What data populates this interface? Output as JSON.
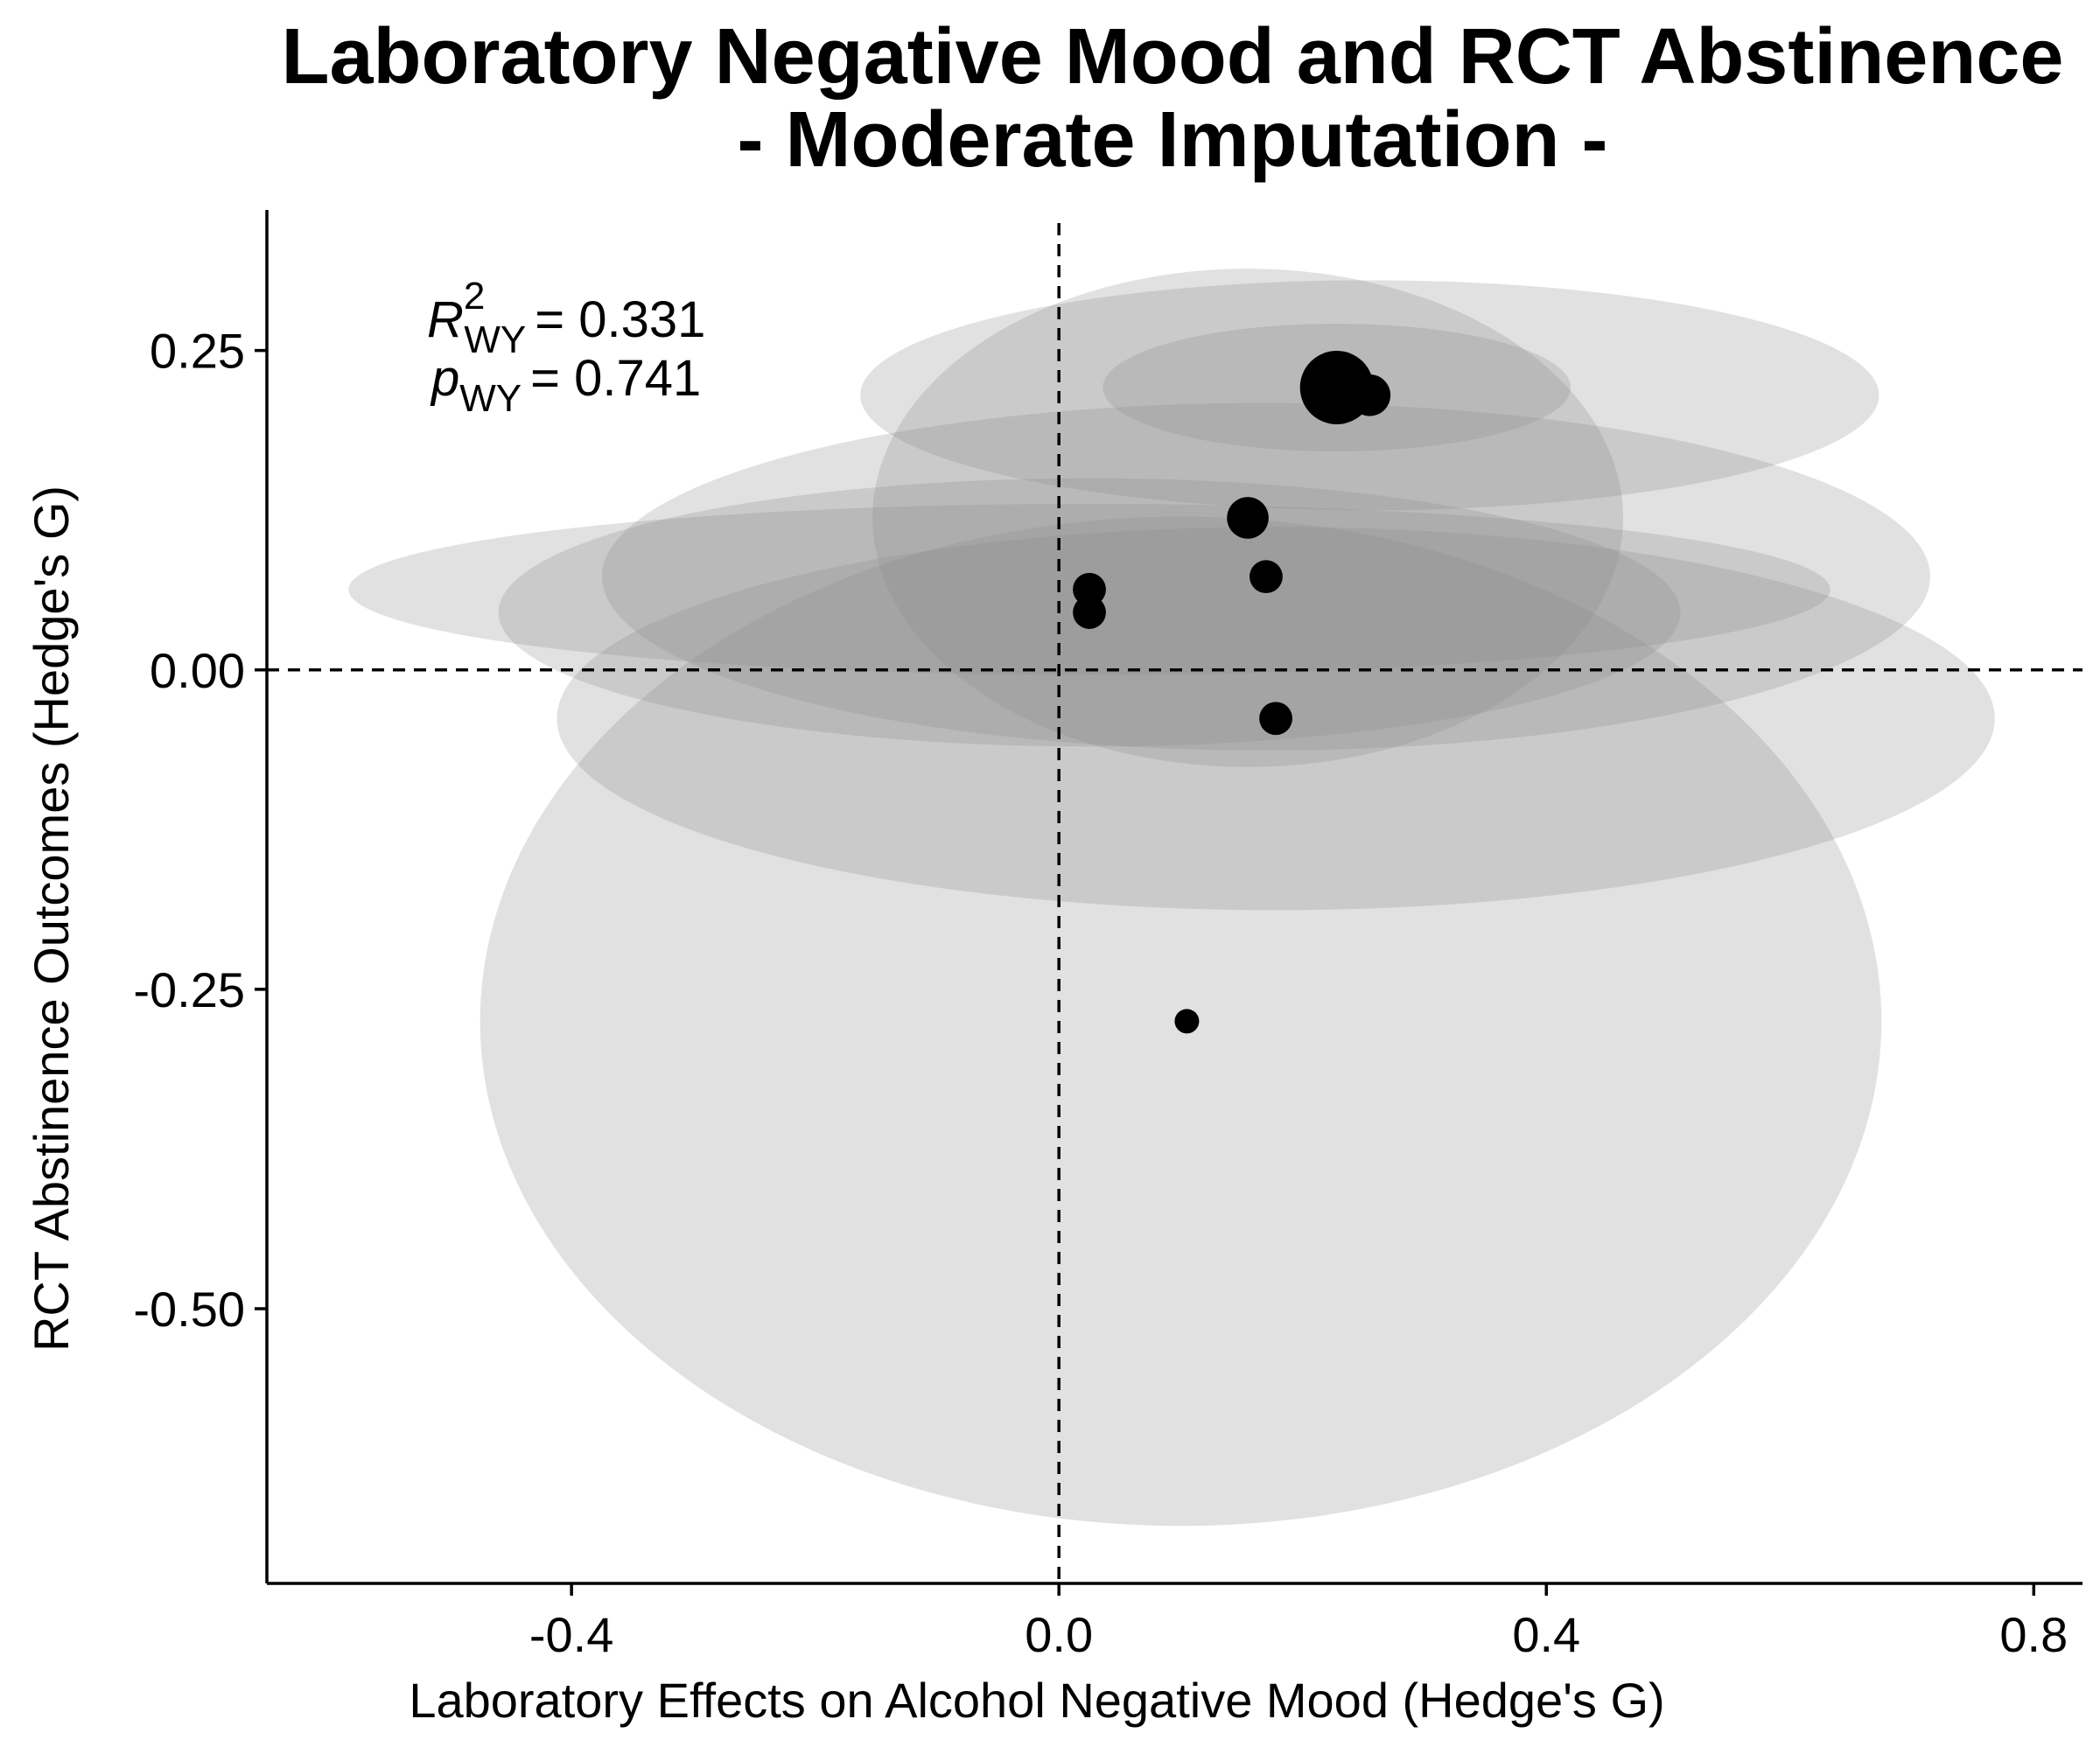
{
  "chart_data": {
    "type": "scatter",
    "title": "Laboratory Negative Mood and RCT Abstinence",
    "subtitle": "- Moderate Imputation -",
    "xlabel": "Laboratory Effects on Alcohol Negative Mood (Hedge's G)",
    "ylabel": "RCT Abstinence Outcomes (Hedge's G)",
    "xlim": [
      -0.65,
      0.84
    ],
    "ylim": [
      -0.715,
      0.36
    ],
    "x_ticks": [
      -0.4,
      0.0,
      0.4,
      0.8
    ],
    "x_tick_labels": [
      "-0.4",
      "0.0",
      "0.4",
      "0.8"
    ],
    "y_ticks": [
      0.25,
      0.0,
      -0.25,
      -0.5
    ],
    "y_tick_labels": [
      "0.25",
      "0.00",
      "-0.25",
      "-0.50"
    ],
    "reference_lines": {
      "x": 0.0,
      "y": 0.0,
      "style": "dashed"
    },
    "grid": false,
    "annotation": {
      "r2_symbol": "R",
      "r2_superscript": "2",
      "r2_subscript": "WY",
      "r2_value": "= 0.331",
      "p_symbol": "p",
      "p_subscript": "WY",
      "p_value": "= 0.741"
    },
    "points": [
      {
        "x": 0.228,
        "y": 0.221,
        "size": 3.0
      },
      {
        "x": 0.255,
        "y": 0.215,
        "size": 1.7
      },
      {
        "x": 0.155,
        "y": 0.119,
        "size": 1.7
      },
      {
        "x": 0.17,
        "y": 0.073,
        "size": 1.35
      },
      {
        "x": 0.025,
        "y": 0.063,
        "size": 1.35
      },
      {
        "x": 0.025,
        "y": 0.045,
        "size": 1.35
      },
      {
        "x": 0.178,
        "y": -0.038,
        "size": 1.35
      },
      {
        "x": 0.105,
        "y": -0.275,
        "size": 1.0
      }
    ],
    "ellipses": [
      {
        "cx": 0.1,
        "cy": -0.275,
        "rx": 0.575,
        "ry": 0.395
      },
      {
        "cx": 0.178,
        "cy": -0.038,
        "rx": 0.59,
        "ry": 0.15
      },
      {
        "cx": 0.025,
        "cy": 0.045,
        "rx": 0.485,
        "ry": 0.105
      },
      {
        "cx": 0.025,
        "cy": 0.063,
        "rx": 0.608,
        "ry": 0.067
      },
      {
        "cx": 0.17,
        "cy": 0.073,
        "rx": 0.545,
        "ry": 0.136
      },
      {
        "cx": 0.155,
        "cy": 0.119,
        "rx": 0.308,
        "ry": 0.195
      },
      {
        "cx": 0.255,
        "cy": 0.215,
        "rx": 0.418,
        "ry": 0.09
      },
      {
        "cx": 0.228,
        "cy": 0.221,
        "rx": 0.192,
        "ry": 0.05
      }
    ],
    "colors": {
      "ellipse_fill": "#8c8c8c",
      "ellipse_opacity": 0.26,
      "points": "#000000",
      "axis": "#000000",
      "background": "#ffffff"
    }
  }
}
